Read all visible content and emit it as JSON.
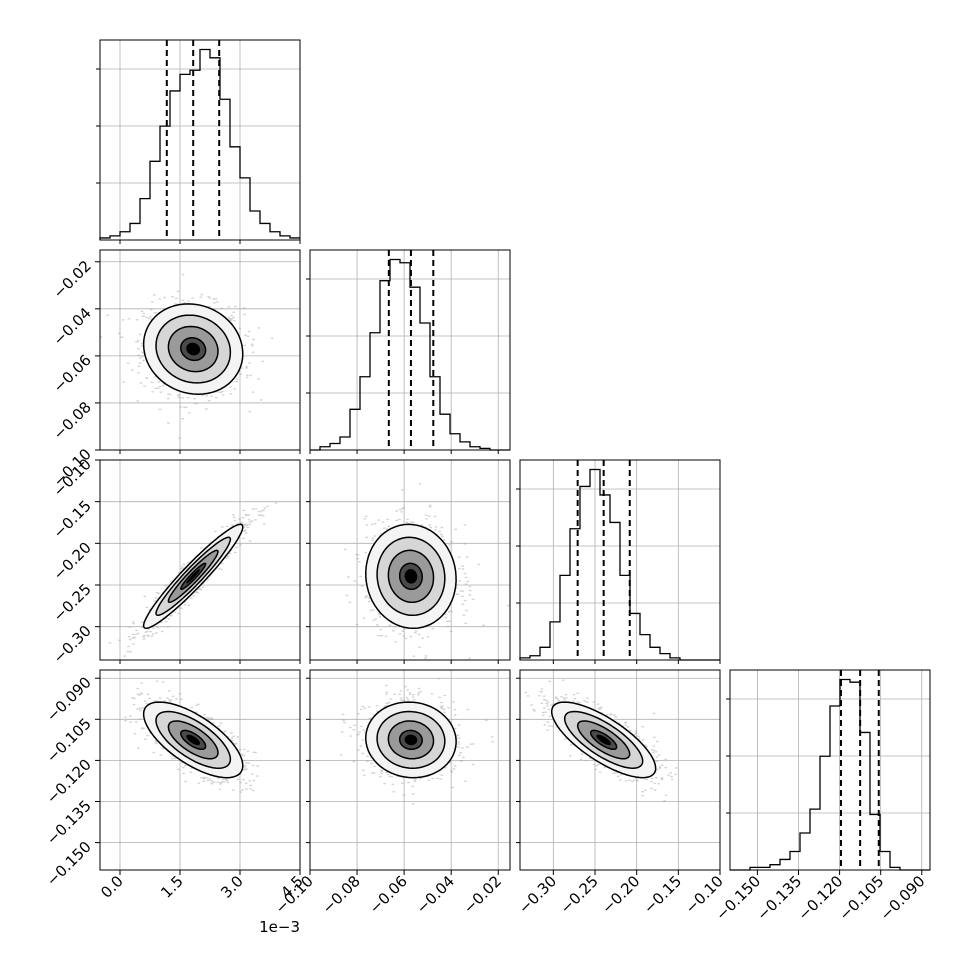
{
  "chart_data": {
    "type": "corner",
    "grid": true,
    "quantiles": [
      0.16,
      0.5,
      0.84
    ],
    "parameters": [
      {
        "range": [
          -0.0005,
          0.0045
        ],
        "ticks": [
          0.0,
          0.0015,
          0.003,
          0.0045
        ],
        "tick_labels": [
          "0.0",
          "1.5",
          "3.0",
          "4.5"
        ],
        "offset_label": "1e−3",
        "quantile_values": [
          0.00117,
          0.00183,
          0.00248
        ],
        "histogram": {
          "bin_start": -0.0005,
          "bin_width": 0.00025,
          "counts": [
            1,
            2,
            4,
            8,
            20,
            38,
            55,
            72,
            80,
            82,
            92,
            88,
            68,
            45,
            30,
            14,
            8,
            4,
            2,
            1
          ]
        }
      },
      {
        "range": [
          -0.1,
          -0.015
        ],
        "ticks": [
          -0.1,
          -0.08,
          -0.06,
          -0.04,
          -0.02
        ],
        "tick_labels": [
          "−0.10",
          "−0.08",
          "−0.06",
          "−0.04",
          "−0.02"
        ],
        "quantile_values": [
          -0.0665,
          -0.0571,
          -0.0476
        ],
        "histogram": {
          "bin_start": -0.1,
          "bin_width": 0.00425,
          "counts": [
            0,
            2,
            4,
            8,
            25,
            45,
            72,
            104,
            117,
            115,
            100,
            78,
            45,
            22,
            10,
            5,
            2,
            1,
            0,
            0
          ]
        }
      },
      {
        "range": [
          -0.34,
          -0.1
        ],
        "ticks": [
          -0.3,
          -0.25,
          -0.2,
          -0.15,
          -0.1
        ],
        "tick_labels": [
          "−0.30",
          "−0.25",
          "−0.20",
          "−0.15",
          "−0.10"
        ],
        "quantile_values": [
          -0.2708,
          -0.2396,
          -0.2083
        ],
        "histogram": {
          "bin_start": -0.34,
          "bin_width": 0.012,
          "counts": [
            1,
            2,
            6,
            18,
            40,
            62,
            82,
            90,
            78,
            65,
            40,
            22,
            12,
            6,
            3,
            1,
            0,
            0,
            0,
            0
          ]
        }
      },
      {
        "range": [
          -0.16,
          -0.087
        ],
        "ticks": [
          -0.15,
          -0.135,
          -0.12,
          -0.105,
          -0.09
        ],
        "tick_labels": [
          "−0.150",
          "−0.135",
          "−0.120",
          "−0.105",
          "−0.090"
        ],
        "quantile_values": [
          -0.1195,
          -0.1125,
          -0.1057
        ],
        "histogram": {
          "bin_start": -0.16,
          "bin_width": 0.00365,
          "counts": [
            0,
            0,
            1,
            1,
            2,
            4,
            7,
            14,
            23,
            43,
            62,
            72,
            71,
            52,
            21,
            7,
            1,
            0,
            0,
            0
          ]
        }
      }
    ],
    "pairs": [
      {
        "x": 0,
        "y": 1,
        "mean": [
          0.00183,
          -0.0571
        ],
        "sd": [
          0.00062,
          0.0096
        ],
        "corr": -0.1
      },
      {
        "x": 0,
        "y": 2,
        "mean": [
          0.00183,
          -0.2396
        ],
        "sd": [
          0.00062,
          0.0312
        ],
        "corr": 0.95
      },
      {
        "x": 1,
        "y": 2,
        "mean": [
          -0.0571,
          -0.2396
        ],
        "sd": [
          0.0096,
          0.0312
        ],
        "corr": -0.05
      },
      {
        "x": 0,
        "y": 3,
        "mean": [
          0.00183,
          -0.1125
        ],
        "sd": [
          0.00062,
          0.0069
        ],
        "corr": -0.68
      },
      {
        "x": 1,
        "y": 3,
        "mean": [
          -0.0571,
          -0.1125
        ],
        "sd": [
          0.0096,
          0.0069
        ],
        "corr": -0.05
      },
      {
        "x": 2,
        "y": 3,
        "mean": [
          -0.2396,
          -0.1125
        ],
        "sd": [
          0.0312,
          0.0069
        ],
        "corr": -0.75
      }
    ],
    "contour_levels_sigma": [
      0.5,
      1.0,
      1.5,
      2.0
    ],
    "colors": {
      "line": "#000000",
      "grid": "#b0b0b0",
      "points": "#9e9e9e",
      "frame": "#000000"
    }
  }
}
